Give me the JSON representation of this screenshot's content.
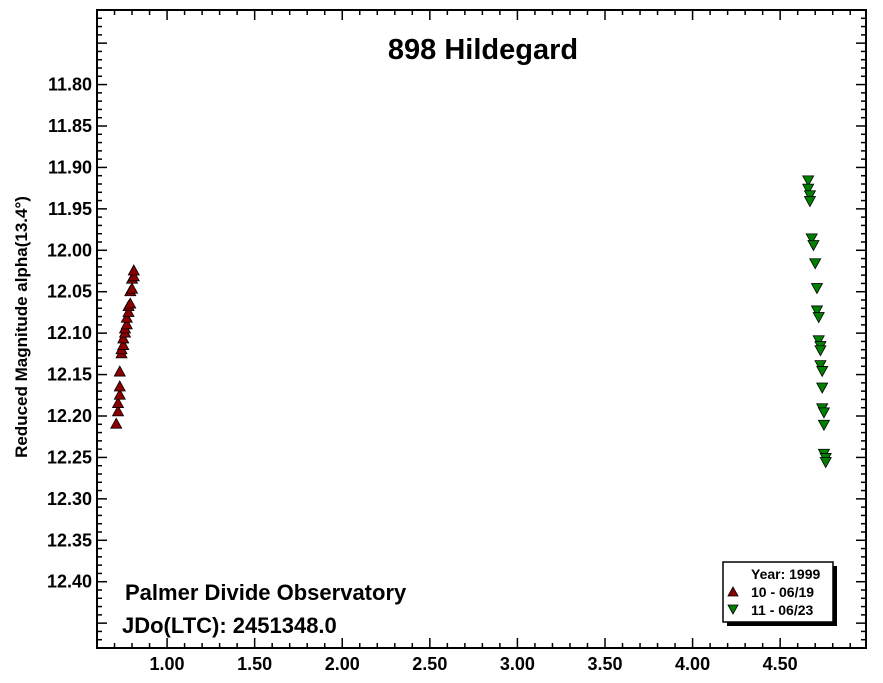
{
  "chart_data": {
    "type": "scatter",
    "title": "898 Hildegard",
    "xlabel": "",
    "ylabel": "Reduced Magnitude alpha(13.4°)",
    "xlim": [
      0.6,
      4.99
    ],
    "ylim": [
      12.48,
      11.71
    ],
    "y_inverted": true,
    "x_ticks": [
      "1.00",
      "1.50",
      "2.00",
      "2.50",
      "3.00",
      "3.50",
      "4.00",
      "4.50"
    ],
    "x_tick_values": [
      1.0,
      1.5,
      2.0,
      2.5,
      3.0,
      3.5,
      4.0,
      4.5
    ],
    "y_ticks": [
      "11.80",
      "11.85",
      "11.90",
      "11.95",
      "12.00",
      "12.05",
      "12.10",
      "12.15",
      "12.20",
      "12.25",
      "12.30",
      "12.35",
      "12.40"
    ],
    "y_tick_values": [
      11.8,
      11.85,
      11.9,
      11.95,
      12.0,
      12.05,
      12.1,
      12.15,
      12.2,
      12.25,
      12.3,
      12.35,
      12.4
    ],
    "grid": false,
    "annotations": [
      "Palmer Divide Observatory",
      "JDo(LTC): 2451348.0"
    ],
    "legend": {
      "placement": "bottom-right",
      "title": "Year: 1999"
    },
    "series": [
      {
        "name": "10 - 06/19",
        "color": "#8b0000",
        "marker": "triangle-up",
        "points": [
          [
            0.71,
            12.21
          ],
          [
            0.72,
            12.195
          ],
          [
            0.72,
            12.185
          ],
          [
            0.73,
            12.175
          ],
          [
            0.73,
            12.165
          ],
          [
            0.73,
            12.147
          ],
          [
            0.74,
            12.125
          ],
          [
            0.74,
            12.12
          ],
          [
            0.75,
            12.115
          ],
          [
            0.75,
            12.107
          ],
          [
            0.76,
            12.1
          ],
          [
            0.76,
            12.095
          ],
          [
            0.77,
            12.09
          ],
          [
            0.77,
            12.082
          ],
          [
            0.78,
            12.075
          ],
          [
            0.78,
            12.068
          ],
          [
            0.79,
            12.065
          ],
          [
            0.79,
            12.05
          ],
          [
            0.8,
            12.047
          ],
          [
            0.8,
            12.035
          ],
          [
            0.81,
            12.032
          ],
          [
            0.81,
            12.025
          ]
        ]
      },
      {
        "name": "11 - 06/23",
        "color": "#008000",
        "marker": "triangle-down",
        "points": [
          [
            4.66,
            11.915
          ],
          [
            4.66,
            11.925
          ],
          [
            4.67,
            11.933
          ],
          [
            4.67,
            11.94
          ],
          [
            4.68,
            11.985
          ],
          [
            4.69,
            11.993
          ],
          [
            4.7,
            12.015
          ],
          [
            4.71,
            12.045
          ],
          [
            4.71,
            12.072
          ],
          [
            4.72,
            12.08
          ],
          [
            4.72,
            12.108
          ],
          [
            4.73,
            12.115
          ],
          [
            4.73,
            12.12
          ],
          [
            4.73,
            12.138
          ],
          [
            4.74,
            12.145
          ],
          [
            4.74,
            12.165
          ],
          [
            4.74,
            12.19
          ],
          [
            4.75,
            12.195
          ],
          [
            4.75,
            12.21
          ],
          [
            4.75,
            12.245
          ],
          [
            4.76,
            12.25
          ],
          [
            4.76,
            12.255
          ]
        ]
      }
    ]
  }
}
